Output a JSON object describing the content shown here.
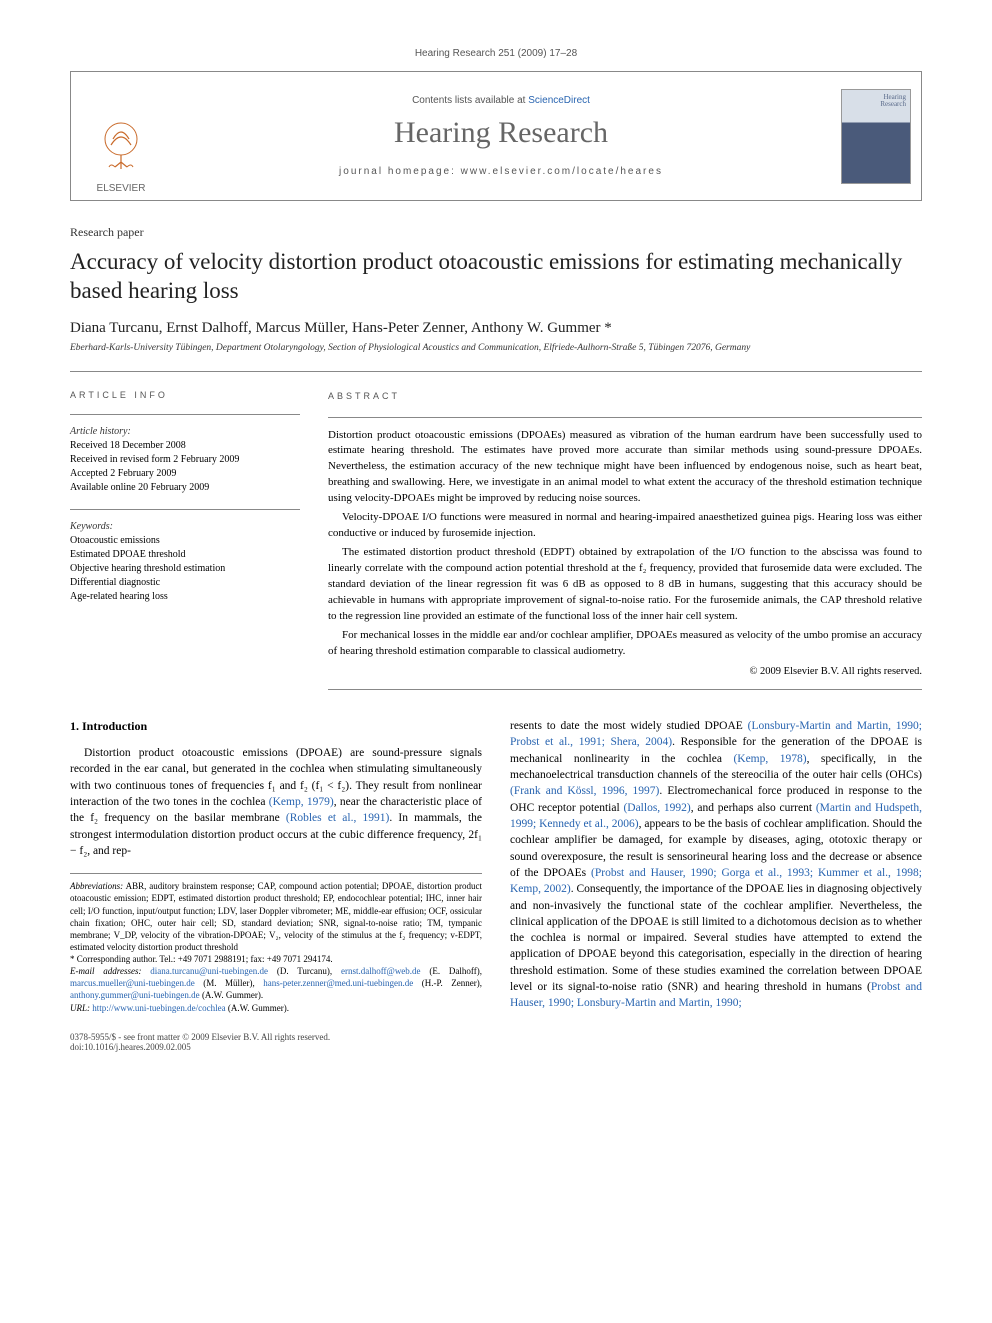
{
  "journal_header_line": "Hearing Research 251 (2009) 17–28",
  "header_box": {
    "contents_line_prefix": "Contents lists available at ",
    "contents_link": "ScienceDirect",
    "journal_title": "Hearing Research",
    "homepage_line": "journal homepage: www.elsevier.com/locate/heares",
    "elsevier_label": "ELSEVIER",
    "cover_title_line1": "Hearing",
    "cover_title_line2": "Research"
  },
  "paper_type": "Research paper",
  "paper_title": "Accuracy of velocity distortion product otoacoustic emissions for estimating mechanically based hearing loss",
  "authors": "Diana Turcanu, Ernst Dalhoff, Marcus Müller, Hans-Peter Zenner, Anthony W. Gummer *",
  "affiliation": "Eberhard-Karls-University Tübingen, Department Otolaryngology, Section of Physiological Acoustics and Communication, Elfriede-Aulhorn-Straße 5, Tübingen 72076, Germany",
  "article_info": {
    "label": "ARTICLE INFO",
    "history_title": "Article history:",
    "history_lines": [
      "Received 18 December 2008",
      "Received in revised form 2 February 2009",
      "Accepted 2 February 2009",
      "Available online 20 February 2009"
    ],
    "keywords_title": "Keywords:",
    "keywords": [
      "Otoacoustic emissions",
      "Estimated DPOAE threshold",
      "Objective hearing threshold estimation",
      "Differential diagnostic",
      "Age-related hearing loss"
    ]
  },
  "abstract": {
    "label": "ABSTRACT",
    "paras": [
      "Distortion product otoacoustic emissions (DPOAEs) measured as vibration of the human eardrum have been successfully used to estimate hearing threshold. The estimates have proved more accurate than similar methods using sound-pressure DPOAEs. Nevertheless, the estimation accuracy of the new technique might have been influenced by endogenous noise, such as heart beat, breathing and swallowing. Here, we investigate in an animal model to what extent the accuracy of the threshold estimation technique using velocity-DPOAEs might be improved by reducing noise sources.",
      "Velocity-DPOAE I/O functions were measured in normal and hearing-impaired anaesthetized guinea pigs. Hearing loss was either conductive or induced by furosemide injection.",
      "The estimated distortion product threshold (EDPT) obtained by extrapolation of the I/O function to the abscissa was found to linearly correlate with the compound action potential threshold at the f₂ frequency, provided that furosemide data were excluded. The standard deviation of the linear regression fit was 6 dB as opposed to 8 dB in humans, suggesting that this accuracy should be achievable in humans with appropriate improvement of signal-to-noise ratio. For the furosemide animals, the CAP threshold relative to the regression line provided an estimate of the functional loss of the inner hair cell system.",
      "For mechanical losses in the middle ear and/or cochlear amplifier, DPOAEs measured as velocity of the umbo promise an accuracy of hearing threshold estimation comparable to classical audiometry."
    ],
    "copyright": "© 2009 Elsevier B.V. All rights reserved."
  },
  "intro": {
    "heading": "1. Introduction",
    "col1": "Distortion product otoacoustic emissions (DPOAE) are sound-pressure signals recorded in the ear canal, but generated in the cochlea when stimulating simultaneously with two continuous tones of frequencies f₁ and f₂ (f₁ < f₂). They result from nonlinear interaction of the two tones in the cochlea (Kemp, 1979), near the characteristic place of the f₂ frequency on the basilar membrane (Robles et al., 1991). In mammals, the strongest intermodulation distortion product occurs at the cubic difference frequency, 2f₁ − f₂, and rep-",
    "col2": "resents to date the most widely studied DPOAE (Lonsbury-Martin and Martin, 1990; Probst et al., 1991; Shera, 2004). Responsible for the generation of the DPOAE is mechanical nonlinearity in the cochlea (Kemp, 1978), specifically, in the mechanoelectrical transduction channels of the stereocilia of the outer hair cells (OHCs) (Frank and Kössl, 1996, 1997). Electromechanical force produced in response to the OHC receptor potential (Dallos, 1992), and perhaps also current (Martin and Hudspeth, 1999; Kennedy et al., 2006), appears to be the basis of cochlear amplification. Should the cochlear amplifier be damaged, for example by diseases, aging, ototoxic therapy or sound overexposure, the result is sensorineural hearing loss and the decrease or absence of the DPOAEs (Probst and Hauser, 1990; Gorga et al., 1993; Kummer et al., 1998; Kemp, 2002). Consequently, the importance of the DPOAE lies in diagnosing objectively and non-invasively the functional state of the cochlear amplifier. Nevertheless, the clinical application of the DPOAE is still limited to a dichotomous decision as to whether the cochlea is normal or impaired. Several studies have attempted to extend the application of DPOAE beyond this categorisation, especially in the direction of hearing threshold estimation. Some of these studies examined the correlation between DPOAE level or its signal-to-noise ratio (SNR) and hearing threshold in humans (Probst and Hauser, 1990; Lonsbury-Martin and Martin, 1990;"
  },
  "footnotes": {
    "abbrev_label": "Abbreviations:",
    "abbrev_text": " ABR, auditory brainstem response; CAP, compound action potential; DPOAE, distortion product otoacoustic emission; EDPT, estimated distortion product threshold; EP, endocochlear potential; IHC, inner hair cell; I/O function, input/output function; LDV, laser Doppler vibrometer; ME, middle-ear effusion; OCF, ossicular chain fixation; OHC, outer hair cell; SD, standard deviation; SNR, signal-to-noise ratio; TM, tympanic membrane; V_DP, velocity of the vibration-DPOAE; V₂, velocity of the stimulus at the f₂ frequency; v-EDPT, estimated velocity distortion product threshold",
    "corr_label": "* Corresponding author. Tel.: +49 7071 2988191; fax: +49 7071 294174.",
    "email_label": "E-mail addresses:",
    "emails": [
      {
        "addr": "diana.turcanu@uni-tuebingen.de",
        "who": " (D. Turcanu), "
      },
      {
        "addr": "ernst.dalhoff@web.de",
        "who": " (E. Dalhoff), "
      },
      {
        "addr": "marcus.mueller@uni-tuebingen.de",
        "who": " (M. Müller), "
      },
      {
        "addr": "hans-peter.zenner@med.uni-tuebingen.de",
        "who": " (H.-P. Zenner), "
      },
      {
        "addr": "anthony.gummer@uni-tuebingen.de",
        "who": " (A.W. Gummer)."
      }
    ],
    "url_label": "URL:",
    "url": "http://www.uni-tuebingen.de/cochlea",
    "url_who": " (A.W. Gummer)."
  },
  "footer": {
    "left_line1": "0378-5955/$ - see front matter © 2009 Elsevier B.V. All rights reserved.",
    "left_line2": "doi:10.1016/j.heares.2009.02.005"
  },
  "colors": {
    "link": "#2864b0",
    "text": "#000000",
    "muted": "#555555",
    "border": "#888888"
  }
}
